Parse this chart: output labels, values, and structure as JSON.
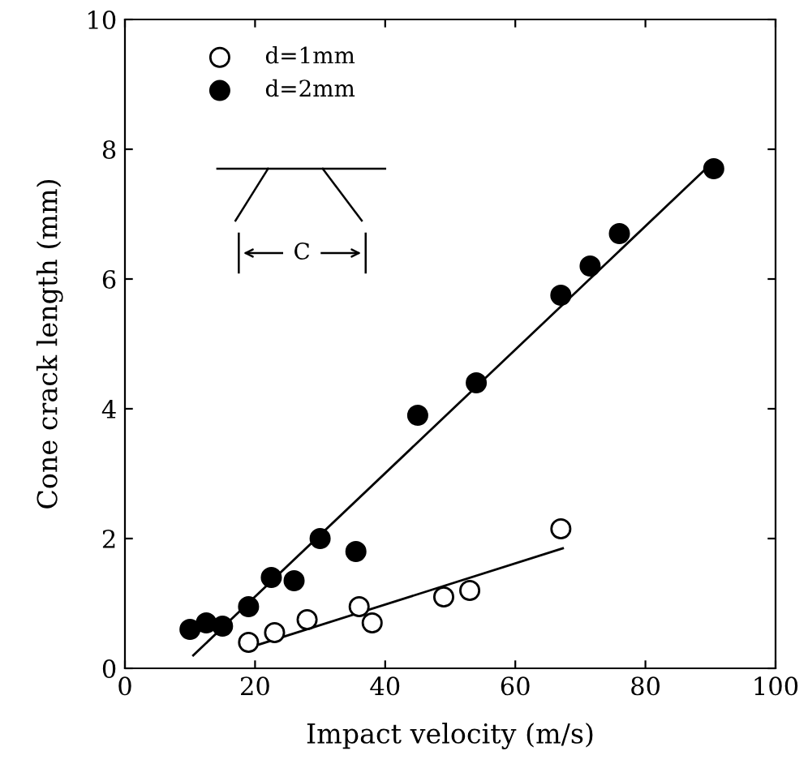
{
  "chart_data": {
    "type": "scatter",
    "xlabel": "Impact velocity (m/s)",
    "ylabel": "Cone crack length (mm)",
    "xlim": [
      0,
      100
    ],
    "ylim": [
      0,
      10
    ],
    "xticks": [
      0,
      20,
      40,
      60,
      80,
      100
    ],
    "yticks": [
      0,
      2,
      4,
      6,
      8,
      10
    ],
    "grid": false,
    "legend": "top left",
    "marker": "circle",
    "annotations": [
      "C"
    ],
    "series": [
      {
        "name": "d=1mm",
        "color": "#ffffff",
        "x": [
          19,
          23,
          28,
          36,
          38,
          49,
          53,
          67
        ],
        "values": [
          0.4,
          0.55,
          0.75,
          0.95,
          0.7,
          1.1,
          1.2,
          2.15
        ]
      },
      {
        "name": "d=2mm",
        "color": "#000000",
        "x": [
          10,
          12.5,
          15,
          19,
          22.5,
          26,
          30,
          35.5,
          45,
          54,
          67,
          71.5,
          76,
          90.5
        ],
        "values": [
          0.6,
          0.7,
          0.65,
          0.95,
          1.4,
          1.35,
          2.0,
          1.8,
          3.9,
          4.4,
          5.75,
          6.2,
          6.7,
          7.7
        ]
      },
      {
        "type": "line",
        "marker": "none",
        "color": "#000000",
        "x": [
          20.7,
          67.3
        ],
        "values": [
          0.37,
          1.85
        ]
      },
      {
        "type": "line",
        "marker": "none",
        "color": "#000000",
        "x": [
          10.5,
          89.3
        ],
        "values": [
          0.2,
          7.7
        ]
      }
    ]
  }
}
